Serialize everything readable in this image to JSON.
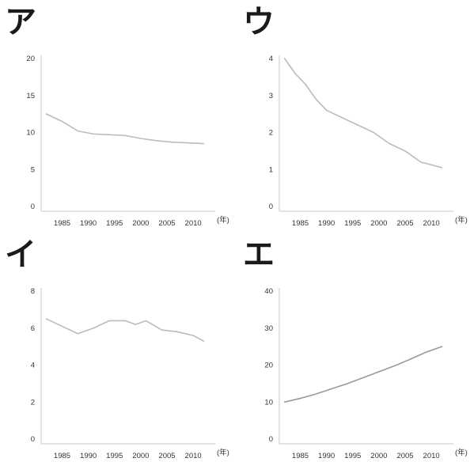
{
  "chart_data": [
    {
      "type": "line",
      "panel_label": "ア",
      "unit_label": "(年)",
      "x": [
        1982,
        1985,
        1988,
        1991,
        1994,
        1997,
        2000,
        2003,
        2006,
        2009,
        2012
      ],
      "series": [
        {
          "values": [
            12.5,
            11.5,
            10.2,
            9.8,
            9.7,
            9.6,
            9.2,
            8.9,
            8.7,
            8.6,
            8.5
          ]
        }
      ],
      "xticks": [
        1985,
        1990,
        1995,
        2000,
        2005,
        2010
      ],
      "yticks": [
        0,
        5,
        10,
        15,
        20
      ],
      "ylim": [
        0,
        20
      ],
      "xlim": [
        1981,
        2013
      ],
      "line_color": "#bbbbbb"
    },
    {
      "type": "line",
      "panel_label": "ウ",
      "unit_label": "(年)",
      "x": [
        1982,
        1984,
        1986,
        1988,
        1990,
        1993,
        1996,
        1999,
        2002,
        2005,
        2008,
        2012
      ],
      "series": [
        {
          "values": [
            4.0,
            3.6,
            3.3,
            2.9,
            2.6,
            2.4,
            2.2,
            2.0,
            1.7,
            1.5,
            1.2,
            1.05
          ]
        }
      ],
      "xticks": [
        1985,
        1990,
        1995,
        2000,
        2005,
        2010
      ],
      "yticks": [
        0,
        1,
        2,
        3,
        4
      ],
      "ylim": [
        0,
        4
      ],
      "xlim": [
        1981,
        2013
      ],
      "line_color": "#bbbbbb"
    },
    {
      "type": "line",
      "panel_label": "イ",
      "unit_label": "(年)",
      "x": [
        1982,
        1985,
        1988,
        1991,
        1994,
        1997,
        1999,
        2001,
        2004,
        2007,
        2010,
        2012
      ],
      "series": [
        {
          "values": [
            6.5,
            6.1,
            5.7,
            6.0,
            6.4,
            6.4,
            6.2,
            6.4,
            5.9,
            5.8,
            5.6,
            5.3
          ]
        }
      ],
      "xticks": [
        1985,
        1990,
        1995,
        2000,
        2005,
        2010
      ],
      "yticks": [
        0,
        2,
        4,
        6,
        8
      ],
      "ylim": [
        0,
        8
      ],
      "xlim": [
        1981,
        2013
      ],
      "line_color": "#bbbbbb"
    },
    {
      "type": "line",
      "panel_label": "エ",
      "unit_label": "(年)",
      "x": [
        1982,
        1985,
        1988,
        1991,
        1994,
        1997,
        2000,
        2003,
        2006,
        2009,
        2012
      ],
      "series": [
        {
          "values": [
            10.0,
            11.0,
            12.2,
            13.6,
            15.0,
            16.6,
            18.2,
            19.8,
            21.6,
            23.5,
            25.0
          ]
        }
      ],
      "xticks": [
        1985,
        1990,
        1995,
        2000,
        2005,
        2010
      ],
      "yticks": [
        0,
        10,
        20,
        30,
        40
      ],
      "ylim": [
        0,
        40
      ],
      "xlim": [
        1981,
        2013
      ],
      "line_color": "#999999"
    }
  ]
}
